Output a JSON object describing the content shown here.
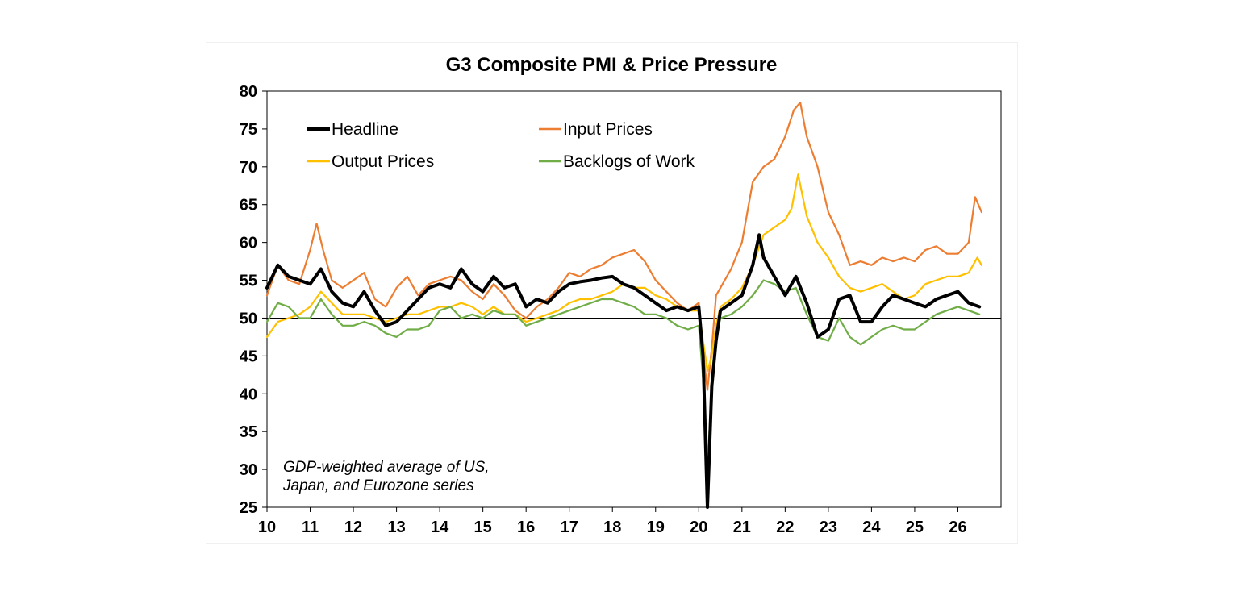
{
  "chart_data": {
    "type": "line",
    "title": "G3 Composite PMI & Price Pressure",
    "annotation": [
      "GDP-weighted average of US,",
      "Japan, and Eurozone series"
    ],
    "x_ticks": [
      "10",
      "11",
      "12",
      "13",
      "14",
      "15",
      "16",
      "17",
      "18",
      "19",
      "20",
      "21",
      "22",
      "23",
      "24",
      "25",
      "26"
    ],
    "y_ticks": [
      25,
      30,
      35,
      40,
      45,
      50,
      55,
      60,
      65,
      70,
      75,
      80
    ],
    "ylim": [
      25,
      80
    ],
    "xlim": [
      2010.0,
      2027.0
    ],
    "reference_line": 50,
    "legend_position": "top-left",
    "series": [
      {
        "name": "Headline",
        "color": "#000000",
        "x": [
          2010.0,
          2010.25,
          2010.5,
          2010.75,
          2011.0,
          2011.25,
          2011.5,
          2011.75,
          2012.0,
          2012.25,
          2012.5,
          2012.75,
          2013.0,
          2013.25,
          2013.5,
          2013.75,
          2014.0,
          2014.25,
          2014.5,
          2014.75,
          2015.0,
          2015.25,
          2015.5,
          2015.75,
          2016.0,
          2016.25,
          2016.5,
          2016.75,
          2017.0,
          2017.25,
          2017.5,
          2017.75,
          2018.0,
          2018.25,
          2018.5,
          2018.75,
          2019.0,
          2019.25,
          2019.5,
          2019.75,
          2020.0,
          2020.1,
          2020.2,
          2020.3,
          2020.4,
          2020.5,
          2020.75,
          2021.0,
          2021.25,
          2021.4,
          2021.5,
          2021.75,
          2022.0,
          2022.25,
          2022.5,
          2022.75,
          2023.0,
          2023.25,
          2023.5,
          2023.75,
          2024.0,
          2024.25,
          2024.5,
          2024.75,
          2025.0,
          2025.25,
          2025.5,
          2025.75,
          2026.0,
          2026.25,
          2026.5
        ],
        "values": [
          54.0,
          57.0,
          55.5,
          55.0,
          54.5,
          56.5,
          53.5,
          52.0,
          51.5,
          53.5,
          51.0,
          49.0,
          49.5,
          51.0,
          52.5,
          54.0,
          54.5,
          54.0,
          56.5,
          54.5,
          53.5,
          55.5,
          54.0,
          54.5,
          51.5,
          52.5,
          52.0,
          53.5,
          54.5,
          54.8,
          55.0,
          55.3,
          55.5,
          54.5,
          54.0,
          53.0,
          52.0,
          51.0,
          51.5,
          51.0,
          51.5,
          45.0,
          25.0,
          41.0,
          47.0,
          51.0,
          52.0,
          53.0,
          57.0,
          61.0,
          58.0,
          55.5,
          53.0,
          55.5,
          52.0,
          47.5,
          48.5,
          52.5,
          53.0,
          49.5,
          49.5,
          51.5,
          53.0,
          52.5,
          52.0,
          51.5,
          52.5,
          53.0,
          53.5,
          52.0,
          51.5
        ]
      },
      {
        "name": "Input Prices",
        "color": "#ed7d31",
        "x": [
          2010.0,
          2010.25,
          2010.5,
          2010.75,
          2011.0,
          2011.15,
          2011.3,
          2011.5,
          2011.75,
          2012.0,
          2012.25,
          2012.5,
          2012.75,
          2013.0,
          2013.25,
          2013.5,
          2013.75,
          2014.0,
          2014.25,
          2014.5,
          2014.75,
          2015.0,
          2015.25,
          2015.5,
          2015.75,
          2016.0,
          2016.25,
          2016.5,
          2016.75,
          2017.0,
          2017.25,
          2017.5,
          2017.75,
          2018.0,
          2018.25,
          2018.5,
          2018.75,
          2019.0,
          2019.25,
          2019.5,
          2019.75,
          2020.0,
          2020.1,
          2020.2,
          2020.3,
          2020.4,
          2020.5,
          2020.75,
          2021.0,
          2021.25,
          2021.5,
          2021.75,
          2022.0,
          2022.2,
          2022.35,
          2022.5,
          2022.75,
          2023.0,
          2023.25,
          2023.5,
          2023.75,
          2024.0,
          2024.25,
          2024.5,
          2024.75,
          2025.0,
          2025.25,
          2025.5,
          2025.75,
          2026.0,
          2026.25,
          2026.4,
          2026.55
        ],
        "values": [
          53.0,
          57.0,
          55.0,
          54.5,
          59.0,
          62.5,
          59.0,
          55.0,
          54.0,
          55.0,
          56.0,
          52.5,
          51.5,
          54.0,
          55.5,
          53.0,
          54.5,
          55.0,
          55.5,
          55.0,
          53.5,
          52.5,
          54.5,
          53.0,
          51.0,
          50.0,
          51.5,
          52.5,
          54.0,
          56.0,
          55.5,
          56.5,
          57.0,
          58.0,
          58.5,
          59.0,
          57.5,
          55.0,
          53.5,
          52.0,
          51.0,
          52.0,
          45.5,
          40.5,
          46.0,
          53.0,
          54.0,
          56.5,
          60.0,
          68.0,
          70.0,
          71.0,
          74.0,
          77.5,
          78.5,
          74.0,
          70.0,
          64.0,
          61.0,
          57.0,
          57.5,
          57.0,
          58.0,
          57.5,
          58.0,
          57.5,
          59.0,
          59.5,
          58.5,
          58.5,
          60.0,
          66.0,
          64.0
        ]
      },
      {
        "name": "Output Prices",
        "color": "#ffc000",
        "x": [
          2010.0,
          2010.25,
          2010.5,
          2010.75,
          2011.0,
          2011.25,
          2011.5,
          2011.75,
          2012.0,
          2012.25,
          2012.5,
          2012.75,
          2013.0,
          2013.25,
          2013.5,
          2013.75,
          2014.0,
          2014.25,
          2014.5,
          2014.75,
          2015.0,
          2015.25,
          2015.5,
          2015.75,
          2016.0,
          2016.25,
          2016.5,
          2016.75,
          2017.0,
          2017.25,
          2017.5,
          2017.75,
          2018.0,
          2018.25,
          2018.5,
          2018.75,
          2019.0,
          2019.25,
          2019.5,
          2019.75,
          2020.0,
          2020.1,
          2020.2,
          2020.3,
          2020.4,
          2020.5,
          2020.75,
          2021.0,
          2021.25,
          2021.5,
          2021.75,
          2022.0,
          2022.15,
          2022.3,
          2022.5,
          2022.75,
          2023.0,
          2023.25,
          2023.5,
          2023.75,
          2024.0,
          2024.25,
          2024.5,
          2024.75,
          2025.0,
          2025.25,
          2025.5,
          2025.75,
          2026.0,
          2026.25,
          2026.45,
          2026.55
        ],
        "values": [
          47.5,
          49.5,
          50.0,
          50.5,
          51.5,
          53.5,
          52.0,
          50.5,
          50.5,
          50.5,
          50.0,
          49.5,
          50.0,
          50.5,
          50.5,
          51.0,
          51.5,
          51.5,
          52.0,
          51.5,
          50.5,
          51.5,
          50.5,
          50.5,
          49.5,
          50.0,
          50.5,
          51.0,
          52.0,
          52.5,
          52.5,
          53.0,
          53.5,
          54.5,
          54.0,
          54.0,
          53.0,
          52.5,
          51.5,
          51.0,
          51.0,
          47.0,
          43.0,
          45.0,
          49.0,
          51.5,
          52.5,
          54.0,
          57.0,
          61.0,
          62.0,
          63.0,
          64.5,
          69.0,
          63.5,
          60.0,
          58.0,
          55.5,
          54.0,
          53.5,
          54.0,
          54.5,
          53.5,
          52.5,
          53.0,
          54.5,
          55.0,
          55.5,
          55.5,
          56.0,
          58.0,
          57.0
        ]
      },
      {
        "name": "Backlogs of Work",
        "color": "#70ad47",
        "x": [
          2010.0,
          2010.25,
          2010.5,
          2010.75,
          2011.0,
          2011.25,
          2011.5,
          2011.75,
          2012.0,
          2012.25,
          2012.5,
          2012.75,
          2013.0,
          2013.25,
          2013.5,
          2013.75,
          2014.0,
          2014.25,
          2014.5,
          2014.75,
          2015.0,
          2015.25,
          2015.5,
          2015.75,
          2016.0,
          2016.25,
          2016.5,
          2016.75,
          2017.0,
          2017.25,
          2017.5,
          2017.75,
          2018.0,
          2018.25,
          2018.5,
          2018.75,
          2019.0,
          2019.25,
          2019.5,
          2019.75,
          2020.0,
          2020.1,
          2020.2,
          2020.3,
          2020.4,
          2020.5,
          2020.75,
          2021.0,
          2021.25,
          2021.5,
          2021.75,
          2022.0,
          2022.25,
          2022.5,
          2022.75,
          2023.0,
          2023.25,
          2023.5,
          2023.75,
          2024.0,
          2024.25,
          2024.5,
          2024.75,
          2025.0,
          2025.25,
          2025.5,
          2025.75,
          2026.0,
          2026.25,
          2026.5
        ],
        "values": [
          49.5,
          52.0,
          51.5,
          50.0,
          50.0,
          52.5,
          50.5,
          49.0,
          49.0,
          49.5,
          49.0,
          48.0,
          47.5,
          48.5,
          48.5,
          49.0,
          51.0,
          51.5,
          50.0,
          50.5,
          50.0,
          51.0,
          50.5,
          50.5,
          49.0,
          49.5,
          50.0,
          50.5,
          51.0,
          51.5,
          52.0,
          52.5,
          52.5,
          52.0,
          51.5,
          50.5,
          50.5,
          50.0,
          49.0,
          48.5,
          49.0,
          42.0,
          31.0,
          40.0,
          47.5,
          50.0,
          50.5,
          51.5,
          53.0,
          55.0,
          54.5,
          53.5,
          54.0,
          50.5,
          47.5,
          47.0,
          50.0,
          47.5,
          46.5,
          47.5,
          48.5,
          49.0,
          48.5,
          48.5,
          49.5,
          50.5,
          51.0,
          51.5,
          51.0,
          50.5
        ]
      }
    ]
  }
}
